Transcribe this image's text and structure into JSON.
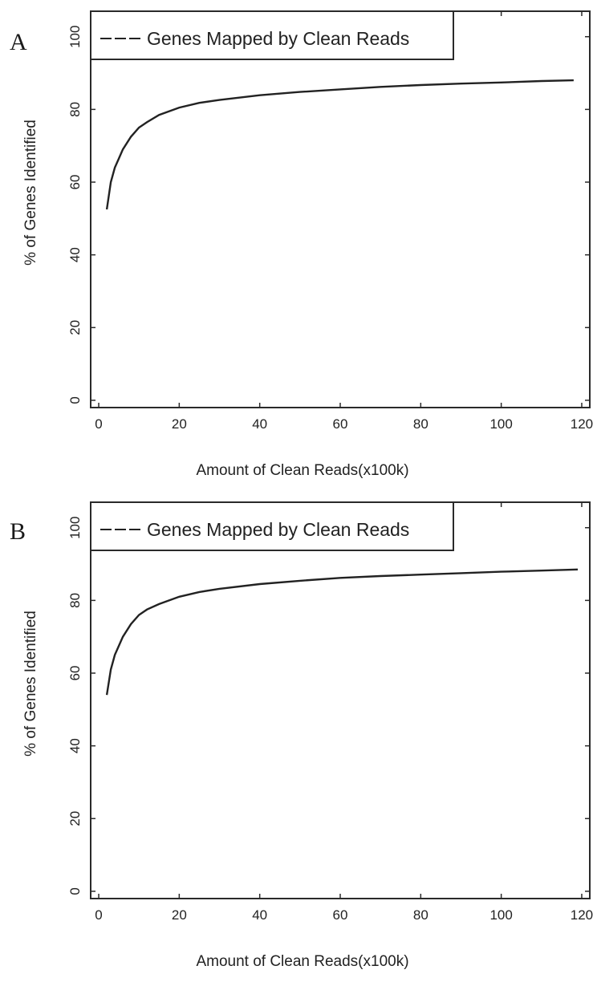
{
  "panels": [
    {
      "letter": "A"
    },
    {
      "letter": "B"
    }
  ],
  "chart_data": [
    {
      "type": "line",
      "panel": "A",
      "xlabel": "Amount of Clean Reads(x100k)",
      "ylabel": "% of Genes Identified",
      "xlim": [
        -2,
        122
      ],
      "ylim": [
        -2,
        107
      ],
      "xticks": [
        0,
        20,
        40,
        60,
        80,
        100,
        120
      ],
      "yticks": [
        0,
        20,
        40,
        60,
        80,
        100
      ],
      "legend": "top-left",
      "grid": false,
      "series": [
        {
          "name": "Genes Mapped by Clean Reads",
          "x": [
            2,
            3,
            4,
            5,
            6,
            8,
            10,
            12,
            15,
            20,
            25,
            30,
            40,
            50,
            60,
            70,
            80,
            90,
            100,
            110,
            118
          ],
          "y": [
            52.5,
            60,
            64,
            66.5,
            69,
            72.5,
            75,
            76.5,
            78.5,
            80.5,
            81.8,
            82.6,
            83.9,
            84.8,
            85.5,
            86.2,
            86.7,
            87.1,
            87.4,
            87.8,
            88
          ]
        }
      ]
    },
    {
      "type": "line",
      "panel": "B",
      "xlabel": "Amount of Clean Reads(x100k)",
      "ylabel": "% of Genes Identified",
      "xlim": [
        -2,
        122
      ],
      "ylim": [
        -2,
        107
      ],
      "xticks": [
        0,
        20,
        40,
        60,
        80,
        100,
        120
      ],
      "yticks": [
        0,
        20,
        40,
        60,
        80,
        100
      ],
      "legend": "top-left",
      "grid": false,
      "series": [
        {
          "name": "Genes Mapped by Clean Reads",
          "x": [
            2,
            3,
            4,
            5,
            6,
            8,
            10,
            12,
            15,
            20,
            25,
            30,
            40,
            50,
            60,
            70,
            80,
            90,
            100,
            110,
            119
          ],
          "y": [
            54,
            61,
            65,
            67.5,
            70,
            73.5,
            76,
            77.5,
            79,
            81,
            82.3,
            83.2,
            84.5,
            85.4,
            86.2,
            86.7,
            87.1,
            87.5,
            87.9,
            88.2,
            88.5
          ]
        }
      ]
    }
  ]
}
